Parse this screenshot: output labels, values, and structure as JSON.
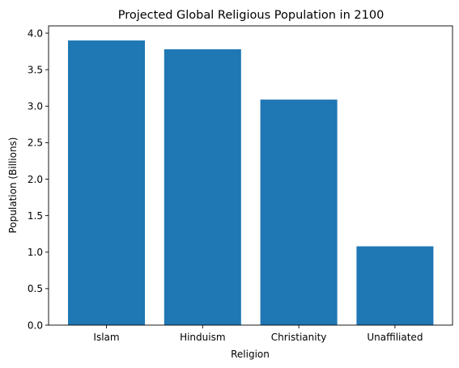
{
  "chart_data": {
    "type": "bar",
    "title": "Projected Global Religious Population in 2100",
    "xlabel": "Religion",
    "ylabel": "Population (Billions)",
    "categories": [
      "Islam",
      "Hinduism",
      "Christianity",
      "Unaffiliated"
    ],
    "values": [
      3.9,
      3.78,
      3.09,
      1.08
    ],
    "ylim": [
      0,
      4.1
    ],
    "yticks": [
      0.0,
      0.5,
      1.0,
      1.5,
      2.0,
      2.5,
      3.0,
      3.5,
      4.0
    ],
    "ytick_labels": [
      "0.0",
      "0.5",
      "1.0",
      "1.5",
      "2.0",
      "2.5",
      "3.0",
      "3.5",
      "4.0"
    ],
    "bar_color": "#1f77b4",
    "grid": false,
    "legend": "none"
  }
}
